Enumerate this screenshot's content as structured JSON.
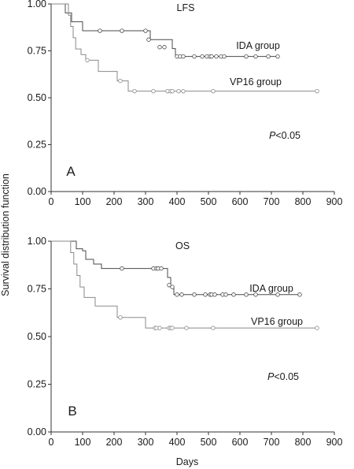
{
  "figure": {
    "ylabel": "Survival distribution function",
    "xlabel": "Days"
  },
  "chart_data": [
    {
      "type": "line",
      "step": true,
      "title": "LFS",
      "panel_label": "A",
      "annotation": {
        "italic": "P",
        "rest": "<0.05"
      },
      "xlabel": "",
      "ylabel": "",
      "xlim": [
        0,
        900
      ],
      "ylim": [
        0,
        1
      ],
      "xticks": [
        "0",
        "100",
        "200",
        "300",
        "400",
        "500",
        "600",
        "700",
        "800",
        "900"
      ],
      "yticks": [
        "0.00",
        "0.25",
        "0.50",
        "0.75",
        "1.00"
      ],
      "series": [
        {
          "name": "IDA group",
          "color": "#4a4a4a",
          "steps": [
            [
              0,
              1.0
            ],
            [
              45,
              0.952
            ],
            [
              65,
              0.905
            ],
            [
              100,
              0.857
            ],
            [
              315,
              0.81
            ],
            [
              325,
              0.81
            ],
            [
              385,
              0.762
            ],
            [
              395,
              0.72
            ],
            [
              720,
              0.72
            ]
          ],
          "censored": [
            [
              155,
              0.857
            ],
            [
              225,
              0.857
            ],
            [
              300,
              0.857
            ],
            [
              310,
              0.81
            ],
            [
              345,
              0.77
            ],
            [
              360,
              0.77
            ],
            [
              400,
              0.72
            ],
            [
              410,
              0.72
            ],
            [
              420,
              0.72
            ],
            [
              455,
              0.72
            ],
            [
              480,
              0.72
            ],
            [
              495,
              0.72
            ],
            [
              505,
              0.72
            ],
            [
              510,
              0.72
            ],
            [
              525,
              0.72
            ],
            [
              540,
              0.72
            ],
            [
              550,
              0.72
            ],
            [
              620,
              0.72
            ],
            [
              650,
              0.72
            ],
            [
              690,
              0.72
            ],
            [
              720,
              0.72
            ]
          ]
        },
        {
          "name": "VP16 group",
          "color": "#8a8a8a",
          "steps": [
            [
              0,
              1.0
            ],
            [
              55,
              0.94
            ],
            [
              62,
              0.88
            ],
            [
              70,
              0.82
            ],
            [
              78,
              0.76
            ],
            [
              95,
              0.73
            ],
            [
              110,
              0.7
            ],
            [
              150,
              0.64
            ],
            [
              210,
              0.59
            ],
            [
              245,
              0.535
            ],
            [
              845,
              0.535
            ]
          ],
          "censored": [
            [
              115,
              0.7
            ],
            [
              220,
              0.59
            ],
            [
              265,
              0.535
            ],
            [
              325,
              0.535
            ],
            [
              370,
              0.535
            ],
            [
              380,
              0.535
            ],
            [
              385,
              0.535
            ],
            [
              405,
              0.535
            ],
            [
              420,
              0.535
            ],
            [
              515,
              0.535
            ],
            [
              845,
              0.535
            ]
          ]
        }
      ]
    },
    {
      "type": "line",
      "step": true,
      "title": "OS",
      "panel_label": "B",
      "annotation": {
        "italic": "P",
        "rest": "<0.05"
      },
      "xlabel": "",
      "ylabel": "",
      "xlim": [
        0,
        900
      ],
      "ylim": [
        0,
        1
      ],
      "xticks": [
        "0",
        "100",
        "200",
        "300",
        "400",
        "500",
        "600",
        "700",
        "800",
        "900"
      ],
      "yticks": [
        "0.00",
        "0.25",
        "0.50",
        "0.75",
        "1.00"
      ],
      "series": [
        {
          "name": "IDA group",
          "color": "#4a4a4a",
          "steps": [
            [
              0,
              1.0
            ],
            [
              80,
              0.96
            ],
            [
              100,
              0.95
            ],
            [
              110,
              0.905
            ],
            [
              135,
              0.88
            ],
            [
              160,
              0.857
            ],
            [
              370,
              0.81
            ],
            [
              380,
              0.762
            ],
            [
              390,
              0.72
            ],
            [
              790,
              0.72
            ]
          ],
          "censored": [
            [
              225,
              0.857
            ],
            [
              325,
              0.857
            ],
            [
              335,
              0.857
            ],
            [
              340,
              0.857
            ],
            [
              350,
              0.857
            ],
            [
              375,
              0.77
            ],
            [
              385,
              0.76
            ],
            [
              400,
              0.72
            ],
            [
              415,
              0.72
            ],
            [
              455,
              0.72
            ],
            [
              490,
              0.72
            ],
            [
              505,
              0.72
            ],
            [
              510,
              0.72
            ],
            [
              520,
              0.72
            ],
            [
              545,
              0.72
            ],
            [
              555,
              0.72
            ],
            [
              580,
              0.72
            ],
            [
              620,
              0.72
            ],
            [
              650,
              0.72
            ],
            [
              720,
              0.72
            ],
            [
              790,
              0.72
            ]
          ]
        },
        {
          "name": "VP16 group",
          "color": "#8a8a8a",
          "steps": [
            [
              0,
              1.0
            ],
            [
              62,
              0.94
            ],
            [
              72,
              0.88
            ],
            [
              82,
              0.82
            ],
            [
              92,
              0.76
            ],
            [
              105,
              0.705
            ],
            [
              140,
              0.66
            ],
            [
              210,
              0.6
            ],
            [
              300,
              0.545
            ],
            [
              845,
              0.545
            ]
          ],
          "censored": [
            [
              220,
              0.6
            ],
            [
              330,
              0.545
            ],
            [
              335,
              0.545
            ],
            [
              345,
              0.545
            ],
            [
              375,
              0.545
            ],
            [
              380,
              0.545
            ],
            [
              385,
              0.545
            ],
            [
              430,
              0.545
            ],
            [
              515,
              0.545
            ],
            [
              845,
              0.545
            ]
          ]
        }
      ]
    }
  ]
}
